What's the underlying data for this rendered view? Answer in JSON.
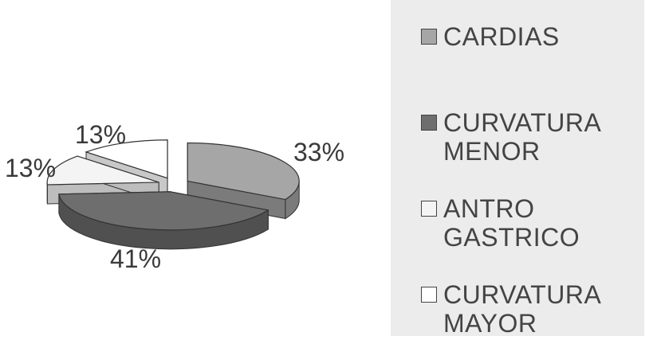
{
  "chart_data": {
    "type": "pie",
    "title": "",
    "three_d": true,
    "exploded": true,
    "slices": [
      {
        "label": "CARDIAS",
        "value": 33,
        "data_label": "33%",
        "color": "#a6a6a6",
        "side_color": "#7b7b7b"
      },
      {
        "label": "CURVATURA MENOR",
        "value": 41,
        "data_label": "41%",
        "color": "#6e6e6e",
        "side_color": "#505050"
      },
      {
        "label": "ANTRO GASTRICO",
        "value": 13,
        "data_label": "13%",
        "color": "#f4f4f4",
        "side_color": "#bdbdbd"
      },
      {
        "label": "CURVATURA MAYOR",
        "value": 13,
        "data_label": "13%",
        "color": "#ffffff",
        "side_color": "#c8c8c8"
      }
    ],
    "legend": {
      "placement": "right",
      "entries": [
        "CARDIAS",
        "CURVATURA MENOR",
        "ANTRO GASTRICO",
        "CURVATURA MAYOR"
      ]
    }
  }
}
